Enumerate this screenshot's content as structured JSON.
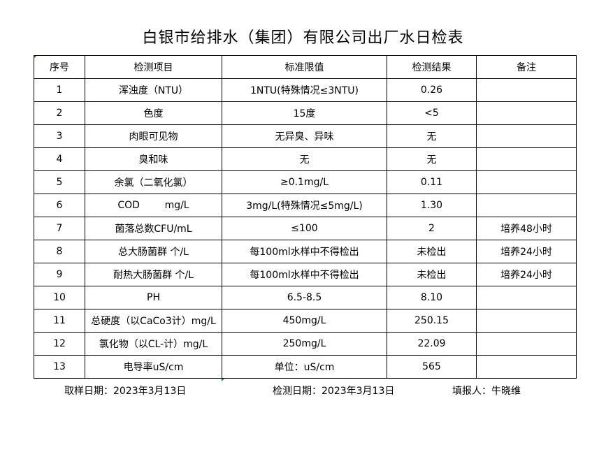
{
  "title": "白银市给排水（集团）有限公司出厂水日检表",
  "headers": [
    "序号",
    "检测项目",
    "标准限值",
    "检测结果",
    "备注"
  ],
  "rows": [
    [
      "1",
      "浑浊度（NTU）",
      "1NTU(特殊情况≤3NTU)",
      "0.26",
      ""
    ],
    [
      "2",
      "色度",
      "15度",
      "<5",
      ""
    ],
    [
      "3",
      "肉眼可见物",
      "无异臭、异味",
      "无",
      ""
    ],
    [
      "4",
      "臭和味",
      "无",
      "无",
      ""
    ],
    [
      "5",
      "余氯（二氧化氯）",
      "≥0.1mg/L",
      "0.11",
      ""
    ],
    [
      "6",
      "COD        mg/L",
      "3mg/L(特殊情况≤5mg/L)",
      "1.30",
      ""
    ],
    [
      "7",
      "菌落总数CFU/mL",
      "≤100",
      "2",
      "培养48小时"
    ],
    [
      "8",
      "总大肠菌群 个/L",
      "每100ml水样中不得检出",
      "未检出",
      "培养24小时"
    ],
    [
      "9",
      "耐热大肠菌群 个/L",
      "每100ml水样中不得检出",
      "未检出",
      "培养24小时"
    ],
    [
      "10",
      "PH",
      "6.5-8.5",
      "8.10",
      ""
    ],
    [
      "11",
      "总硬度（以CaCo3计）mg/L",
      "450mg/L",
      "250.15",
      ""
    ],
    [
      "12",
      "氯化物（以CL-计）mg/L",
      "250mg/L",
      "22.09",
      ""
    ],
    [
      "13",
      "电导率uS/cm",
      "单位：uS/cm",
      "565",
      ""
    ]
  ],
  "footer": {
    "sample_date": "取样日期：2023年3月13日",
    "test_date": "检测日期：2023年3月13日",
    "reporter": "填报人：牛晓维"
  }
}
